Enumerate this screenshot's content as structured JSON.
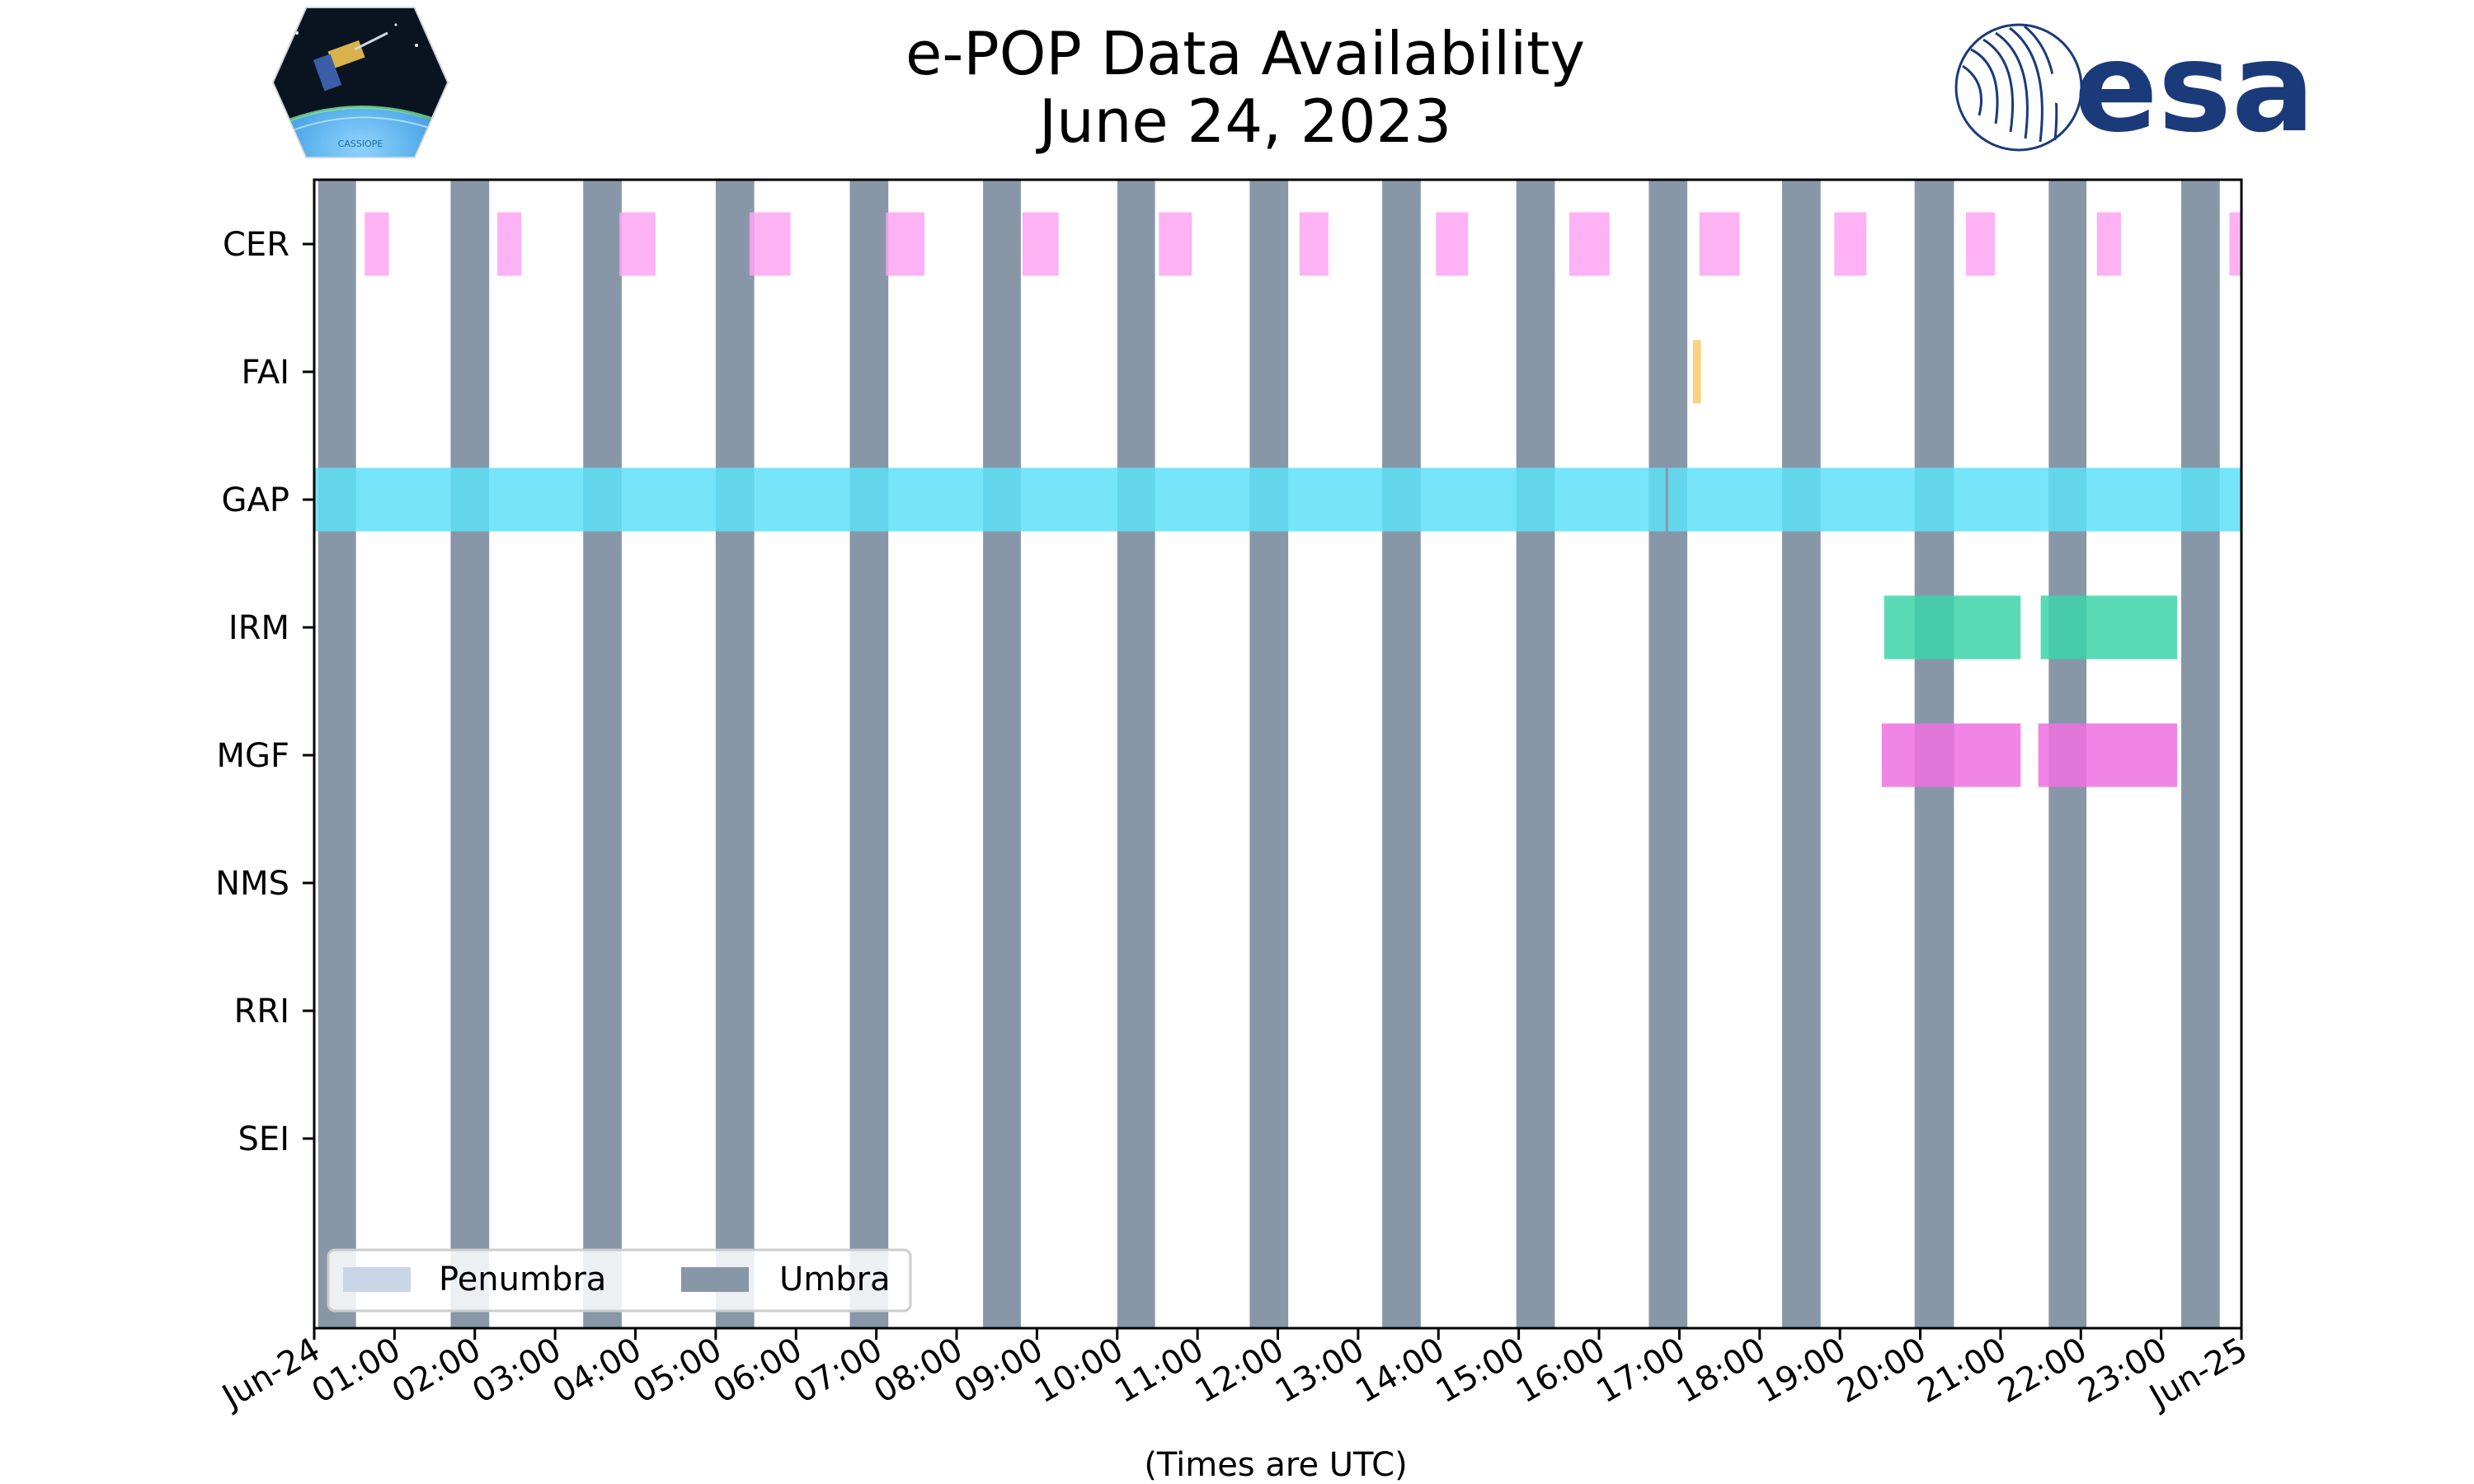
{
  "header": {
    "title_line1": "e-POP Data Availability",
    "title_line2": "June 24, 2023",
    "left_logo": {
      "name": "cassiope-mission-patch",
      "text": "CASSIOPE"
    },
    "right_logo": {
      "name": "esa-logo",
      "text": "esa",
      "color": "#1b3a7a"
    }
  },
  "chart_data": {
    "type": "timeline",
    "title": "e-POP Data Availability",
    "subtitle": "June 24, 2023",
    "xlabel": "(Times are UTC)",
    "ylabel": "",
    "xlim": [
      0,
      24
    ],
    "x_unit": "hours (UTC) from 2023-06-24 00:00",
    "x_ticks": [
      {
        "hour": 0,
        "label": "Jun-24"
      },
      {
        "hour": 1,
        "label": "01:00"
      },
      {
        "hour": 2,
        "label": "02:00"
      },
      {
        "hour": 3,
        "label": "03:00"
      },
      {
        "hour": 4,
        "label": "04:00"
      },
      {
        "hour": 5,
        "label": "05:00"
      },
      {
        "hour": 6,
        "label": "06:00"
      },
      {
        "hour": 7,
        "label": "07:00"
      },
      {
        "hour": 8,
        "label": "08:00"
      },
      {
        "hour": 9,
        "label": "09:00"
      },
      {
        "hour": 10,
        "label": "10:00"
      },
      {
        "hour": 11,
        "label": "11:00"
      },
      {
        "hour": 12,
        "label": "12:00"
      },
      {
        "hour": 13,
        "label": "13:00"
      },
      {
        "hour": 14,
        "label": "14:00"
      },
      {
        "hour": 15,
        "label": "15:00"
      },
      {
        "hour": 16,
        "label": "16:00"
      },
      {
        "hour": 17,
        "label": "17:00"
      },
      {
        "hour": 18,
        "label": "18:00"
      },
      {
        "hour": 19,
        "label": "19:00"
      },
      {
        "hour": 20,
        "label": "20:00"
      },
      {
        "hour": 21,
        "label": "21:00"
      },
      {
        "hour": 22,
        "label": "22:00"
      },
      {
        "hour": 23,
        "label": "23:00"
      },
      {
        "hour": 24,
        "label": "Jun-25"
      }
    ],
    "instruments": [
      "CER",
      "FAI",
      "GAP",
      "IRM",
      "MGF",
      "NMS",
      "RRI",
      "SEI"
    ],
    "umbra": {
      "label": "Umbra",
      "color": "#8797a8",
      "intervals": [
        [
          0.05,
          0.52
        ],
        [
          1.7,
          2.18
        ],
        [
          3.35,
          3.83
        ],
        [
          5.0,
          5.48
        ],
        [
          6.67,
          7.15
        ],
        [
          8.33,
          8.8
        ],
        [
          10.0,
          10.47
        ],
        [
          11.65,
          12.13
        ],
        [
          13.3,
          13.78
        ],
        [
          14.97,
          15.45
        ],
        [
          16.62,
          17.1
        ],
        [
          18.28,
          18.76
        ],
        [
          19.93,
          20.42
        ],
        [
          21.6,
          22.07
        ],
        [
          23.25,
          23.73
        ]
      ]
    },
    "penumbra": {
      "label": "Penumbra",
      "color": "#c8d6e8",
      "intervals": []
    },
    "series": [
      {
        "name": "CER",
        "color": "#fda5f2",
        "intervals": [
          [
            0.63,
            0.93
          ],
          [
            2.28,
            2.58
          ],
          [
            3.8,
            4.25
          ],
          [
            5.42,
            5.93
          ],
          [
            7.12,
            7.6
          ],
          [
            8.82,
            9.27
          ],
          [
            10.52,
            10.93
          ],
          [
            12.27,
            12.63
          ],
          [
            13.97,
            14.37
          ],
          [
            15.63,
            16.13
          ],
          [
            17.25,
            17.75
          ],
          [
            18.93,
            19.33
          ],
          [
            20.57,
            20.93
          ],
          [
            22.2,
            22.5
          ],
          [
            23.85,
            24.0
          ]
        ]
      },
      {
        "name": "FAI",
        "color": "#f8ca6c",
        "intervals": [
          [
            17.17,
            17.27
          ]
        ]
      },
      {
        "name": "GAP",
        "color": "#5ee0f8",
        "intervals": [
          [
            0.0,
            16.83
          ],
          [
            16.86,
            24.0
          ]
        ]
      },
      {
        "name": "IRM",
        "color": "#3cd4a8",
        "intervals": [
          [
            19.55,
            21.25
          ],
          [
            21.5,
            23.2
          ]
        ]
      },
      {
        "name": "MGF",
        "color": "#ee70e0",
        "intervals": [
          [
            19.52,
            21.25
          ],
          [
            21.47,
            23.2
          ]
        ]
      },
      {
        "name": "NMS",
        "color": "#cccccc",
        "intervals": []
      },
      {
        "name": "RRI",
        "color": "#cccccc",
        "intervals": []
      },
      {
        "name": "SEI",
        "color": "#cccccc",
        "intervals": []
      }
    ],
    "legend": {
      "placement": "bottom-left",
      "entries": [
        {
          "label": "Penumbra",
          "color": "#c8d6e8"
        },
        {
          "label": "Umbra",
          "color": "#8797a8"
        }
      ]
    }
  }
}
